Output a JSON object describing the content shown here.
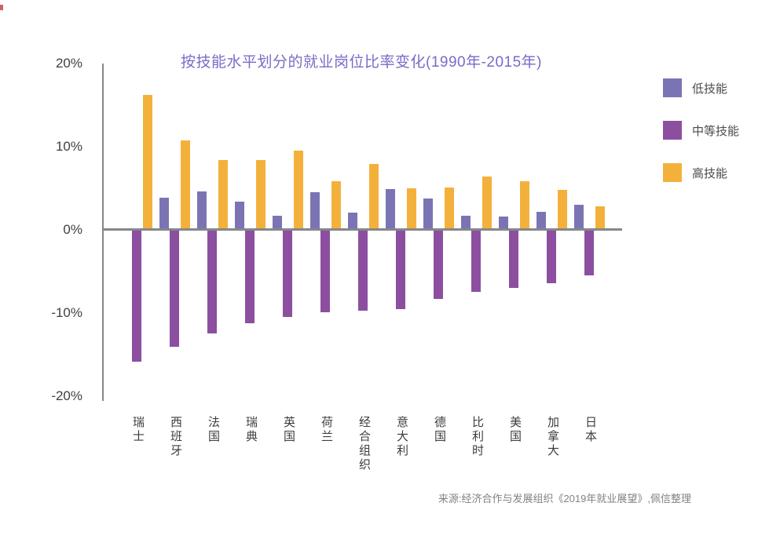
{
  "chart_data": {
    "type": "bar",
    "title": "按技能水平划分的就业岗位比率变化(1990年-2015年)",
    "categories": [
      "瑞士",
      "西班牙",
      "法国",
      "瑞典",
      "英国",
      "荷兰",
      "经合组织",
      "意大利",
      "德国",
      "比利时",
      "美国",
      "加拿大",
      "日本"
    ],
    "series": [
      {
        "name": "低技能",
        "color": "#7B74B4",
        "values": [
          0,
          3.7,
          4.4,
          3.2,
          1.5,
          4.3,
          1.9,
          4.7,
          3.6,
          1.5,
          1.4,
          2.0,
          2.8
        ]
      },
      {
        "name": "中等技能",
        "color": "#8C4FA0",
        "values": [
          -15.8,
          -14.0,
          -12.4,
          -11.1,
          -10.4,
          -9.8,
          -9.6,
          -9.4,
          -8.2,
          -7.4,
          -6.9,
          -6.3,
          -5.4
        ]
      },
      {
        "name": "高技能",
        "color": "#F3B13C",
        "values": [
          16.0,
          10.6,
          8.2,
          8.2,
          9.3,
          5.7,
          7.7,
          4.8,
          4.9,
          6.2,
          5.7,
          4.6,
          2.6
        ]
      }
    ],
    "unit": "%",
    "ylim": [
      -20,
      20
    ],
    "y_ticks": [
      {
        "value": 20,
        "label": "20%"
      },
      {
        "value": 10,
        "label": "10%"
      },
      {
        "value": 0,
        "label": "0%"
      },
      {
        "value": -10,
        "label": "-10%"
      },
      {
        "value": -20,
        "label": "-20%"
      }
    ],
    "grid": false,
    "legend_position": "right"
  },
  "source_note": "来源:经济合作与发展组织《2019年就业展望》,佩信整理",
  "colors": {
    "title_text": "#7C6AC6",
    "axis_line": "#85878B",
    "y_tick_text": "#3F3F3F",
    "x_tick_text": "#3D3D3D",
    "legend_text": "#4A4A4A",
    "source_text": "#828282",
    "background": "#FFFFFF"
  }
}
